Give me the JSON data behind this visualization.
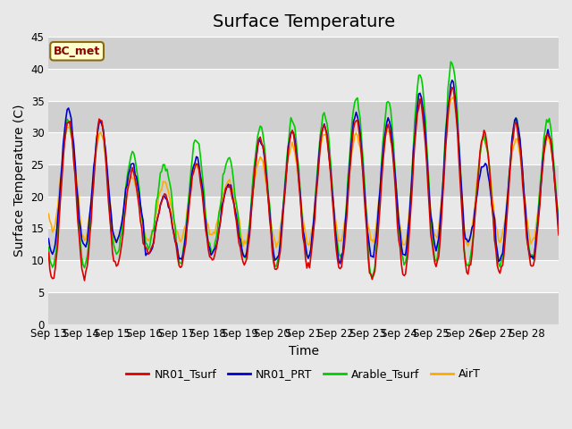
{
  "title": "Surface Temperature",
  "ylabel": "Surface Temperature (C)",
  "xlabel": "Time",
  "annotation": "BC_met",
  "ylim": [
    0,
    45
  ],
  "yticks": [
    0,
    5,
    10,
    15,
    20,
    25,
    30,
    35,
    40,
    45
  ],
  "x_labels": [
    "Sep 13",
    "Sep 14",
    "Sep 15",
    "Sep 16",
    "Sep 17",
    "Sep 18",
    "Sep 19",
    "Sep 20",
    "Sep 21",
    "Sep 22",
    "Sep 23",
    "Sep 24",
    "Sep 25",
    "Sep 26",
    "Sep 27",
    "Sep 28"
  ],
  "legend_labels": [
    "NR01_Tsurf",
    "NR01_PRT",
    "Arable_Tsurf",
    "AirT"
  ],
  "legend_colors": [
    "#dd0000",
    "#0000cc",
    "#00cc00",
    "#ffaa00"
  ],
  "title_fontsize": 14,
  "label_fontsize": 10,
  "tick_fontsize": 8.5,
  "r_max": [
    32,
    32,
    24,
    20,
    25,
    22,
    29,
    30,
    31,
    32,
    31,
    35,
    37,
    30,
    31,
    30
  ],
  "r_min": [
    7,
    7.5,
    9,
    11,
    9,
    10,
    9.5,
    8.5,
    9,
    8.5,
    7,
    7.5,
    9,
    8,
    8,
    9
  ],
  "b_max": [
    33.5,
    32,
    25,
    20,
    26,
    22,
    29,
    30,
    31,
    33,
    32,
    36,
    38,
    25,
    32,
    30
  ],
  "b_min": [
    11,
    12,
    13,
    11,
    10,
    11,
    10.5,
    10,
    10.5,
    10,
    10.5,
    10.5,
    12,
    13,
    10,
    10
  ],
  "g_max": [
    32,
    32,
    27,
    25,
    29,
    26,
    31,
    32,
    33,
    35.5,
    35,
    39.5,
    41,
    29,
    32,
    32
  ],
  "g_min": [
    9,
    9,
    11,
    12,
    10,
    11.5,
    10.5,
    9,
    10,
    10,
    7.5,
    9,
    10,
    9.5,
    9,
    10
  ],
  "o_max": [
    31,
    30,
    23,
    22,
    25,
    22.5,
    26,
    28,
    30,
    30,
    30,
    35.5,
    35.5,
    29,
    29,
    29
  ],
  "o_min": [
    15,
    13,
    13,
    13,
    13,
    14,
    12.5,
    12.5,
    12.5,
    13,
    13,
    12,
    13.5,
    12.5,
    13,
    13
  ]
}
